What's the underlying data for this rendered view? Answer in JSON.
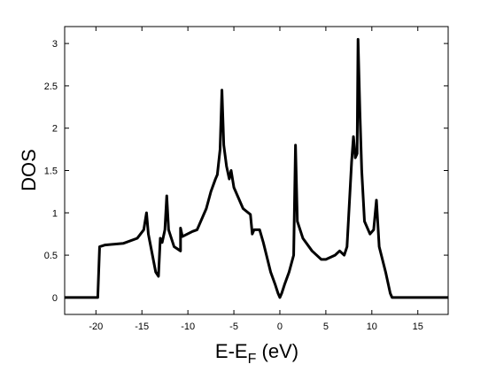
{
  "chart_data": {
    "type": "line",
    "xlabel": [
      "E-E",
      "F",
      " (eV)"
    ],
    "ylabel": "DOS",
    "xlim": [
      -23.4,
      18.3
    ],
    "ylim": [
      -0.2,
      3.2
    ],
    "xticks": [
      -20,
      -15,
      -10,
      -5,
      0,
      5,
      10,
      15
    ],
    "yticks": [
      0,
      0.5,
      1,
      1.5,
      2,
      2.5,
      3
    ],
    "series": [
      {
        "color": "#000000",
        "x": [
          -23.4,
          -19.8,
          -19.6,
          -19,
          -17,
          -15.5,
          -14.8,
          -14.5,
          -14.3,
          -13.5,
          -13.2,
          -13,
          -12.8,
          -12.5,
          -12.3,
          -12.1,
          -11.5,
          -10.8,
          -10.8,
          -10.6,
          -9.5,
          -9,
          -8,
          -7.5,
          -7,
          -6.8,
          -6.5,
          -6.3,
          -6.1,
          -5.8,
          -5.5,
          -5.3,
          -5,
          -4,
          -3.2,
          -3.0,
          -2.8,
          -2.2,
          -1.8,
          -1,
          -0.5,
          -0.2,
          0,
          0.2,
          0.5,
          1,
          1.5,
          1.7,
          1.9,
          2.5,
          3.5,
          4.5,
          5,
          6,
          6.5,
          7,
          7.3,
          7.5,
          7.8,
          8.0,
          8.2,
          8.4,
          8.5,
          8.7,
          8.9,
          9.2,
          9.8,
          10.2,
          10.5,
          10.8,
          11.5,
          12,
          12.2,
          18.3
        ],
        "values": [
          0,
          0,
          0.6,
          0.62,
          0.64,
          0.7,
          0.8,
          1.0,
          0.75,
          0.3,
          0.25,
          0.7,
          0.65,
          0.8,
          1.2,
          0.8,
          0.6,
          0.55,
          0.82,
          0.72,
          0.78,
          0.8,
          1.05,
          1.25,
          1.4,
          1.45,
          1.75,
          2.45,
          1.8,
          1.55,
          1.4,
          1.5,
          1.3,
          1.05,
          0.98,
          0.75,
          0.8,
          0.8,
          0.65,
          0.3,
          0.15,
          0.05,
          0,
          0.05,
          0.15,
          0.3,
          0.5,
          1.8,
          0.9,
          0.7,
          0.55,
          0.45,
          0.45,
          0.5,
          0.55,
          0.5,
          0.6,
          1.0,
          1.6,
          1.9,
          1.65,
          1.7,
          3.05,
          2.2,
          1.5,
          0.9,
          0.75,
          0.8,
          1.15,
          0.6,
          0.3,
          0.05,
          0,
          0
        ]
      }
    ]
  }
}
